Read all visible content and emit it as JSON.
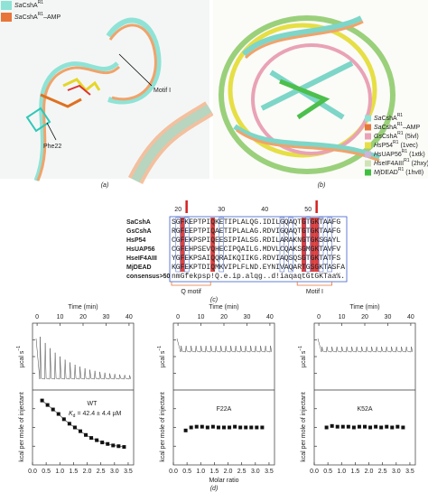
{
  "panel_a": {
    "legend": [
      {
        "species": "Sa",
        "name": "CshA",
        "sup": "R1",
        "color": "#8fe3d6"
      },
      {
        "species": "Sa",
        "name": "CshA",
        "sup": "R1",
        "suffix": "–AMP",
        "color": "#e8763a"
      }
    ],
    "labels": {
      "motif": "Motif I",
      "residue": "Phe22"
    },
    "caption": "(a)"
  },
  "panel_b": {
    "legend": [
      {
        "species": "Sa",
        "name": "CshA",
        "sup": "R1",
        "color": "#8fe3d6"
      },
      {
        "species": "Sa",
        "name": "CshA",
        "sup": "R1",
        "suffix": "–AMP",
        "color": "#e8763a"
      },
      {
        "species": "Gs",
        "name": "CshA",
        "sup": "R1",
        "pdb": "(5ivl)",
        "color": "#e9a2b6"
      },
      {
        "species": "Hs",
        "name": "P54",
        "sup": "R1",
        "pdb": "(1vec)",
        "color": "#e6df45"
      },
      {
        "species": "Hs",
        "name": "UAP56",
        "sup": "R1",
        "pdb": "(1xtk)",
        "color": "#c9b6dc"
      },
      {
        "species": "Hs",
        "name": "eIF4AIII",
        "sup": "R1",
        "pdb": "(2hxy)",
        "color": "#cfe4b5"
      },
      {
        "species": "Mj",
        "name": "DEAD",
        "sup": "R1",
        "pdb": "(1hv8)",
        "color": "#3fbf3f"
      }
    ],
    "caption": "(b)"
  },
  "panel_c": {
    "ruler": [
      20,
      30,
      40,
      50
    ],
    "rows": [
      {
        "name": "SaCshA",
        "sequence": "SGFKEPTPIQKETIPLALQG.IDILGQAQTGTGKTAAFG"
      },
      {
        "name": "GsCshA",
        "sequence": "RGFEEPTPIQAETIPLALAG.RDVIGQAQTGTGKTAAFG"
      },
      {
        "name": "HsP54",
        "sequence": "CGFEKPSPIQEESIPIALSG.RDILARAKNGTGKSGAYL"
      },
      {
        "name": "HsUAP56",
        "sequence": "CGFEHPSEVQHECIPQAILG.MDVLCQAKSGMGKTAVFV"
      },
      {
        "name": "HseIF4AIII",
        "sequence": "YGFEKPSAIQQRAIKQIIKG.RDVIAQSQSGTGKTATFS"
      },
      {
        "name": "MjDEAD",
        "sequence": "KGFEKPTDIQMKVIPLFLND.EYNIVAQARTGSGKTASFA"
      },
      {
        "name": "consensus>50",
        "sequence": "nmGfekpsp!Q.e.ip.alqg..d!iaqaqtGtGKTaa%."
      }
    ],
    "motifs": [
      "Q motif",
      "Motif I"
    ],
    "caption": "(c)"
  },
  "panel_d": {
    "time_label": "Time (min)",
    "time_lim": [
      -2,
      42
    ],
    "time_ticks": [
      0,
      10,
      20,
      30,
      40
    ],
    "power_label": {
      "text": "µcal s",
      "sup": "−1"
    },
    "heat_label": "kcal per mole of injectant",
    "ratio_label": "Molar ratio",
    "ratio_lim": [
      0,
      3.7
    ],
    "ratio_ticks": [
      {
        "value": 0,
        "label": "0.0"
      },
      0.5,
      {
        "value": 1,
        "label": "1.0"
      },
      1.5,
      {
        "value": 2,
        "label": "2.0"
      },
      2.5,
      {
        "value": 3,
        "label": "3.0"
      },
      3.5
    ],
    "ylim": [
      0,
      10
    ],
    "plots": [
      {
        "name": "WT",
        "kd": {
          "symbol": "K",
          "sub": "d",
          "text": "= 42.4 ± 4.4 µM"
        },
        "x": [
          0.35,
          0.55,
          0.75,
          0.95,
          1.15,
          1.35,
          1.55,
          1.75,
          1.95,
          2.15,
          2.35,
          2.55,
          2.75,
          2.95,
          3.15,
          3.35
        ],
        "values": [
          8.6,
          8.0,
          7.4,
          6.8,
          6.1,
          5.5,
          5.0,
          4.5,
          4.0,
          3.6,
          3.3,
          3.0,
          2.8,
          2.6,
          2.5,
          2.4
        ]
      },
      {
        "name": "F22A",
        "x": [
          0.45,
          0.65,
          0.85,
          1.05,
          1.25,
          1.45,
          1.65,
          1.85,
          2.05,
          2.25,
          2.45,
          2.65,
          2.85,
          3.05,
          3.25
        ],
        "values": [
          4.6,
          5.0,
          5.1,
          5.1,
          5.0,
          5.1,
          5.0,
          5.0,
          5.0,
          5.1,
          5.0,
          5.0,
          5.0,
          5.0,
          5.0
        ]
      },
      {
        "name": "K52A",
        "x": [
          0.45,
          0.65,
          0.85,
          1.05,
          1.25,
          1.45,
          1.65,
          1.85,
          2.05,
          2.25,
          2.45,
          2.65,
          2.85,
          3.05,
          3.25
        ],
        "values": [
          5.0,
          5.2,
          5.1,
          5.1,
          5.1,
          5.0,
          5.1,
          5.1,
          5.0,
          5.1,
          5.0,
          5.1,
          5.0,
          5.1,
          5.0
        ]
      }
    ],
    "caption": "(d)"
  }
}
